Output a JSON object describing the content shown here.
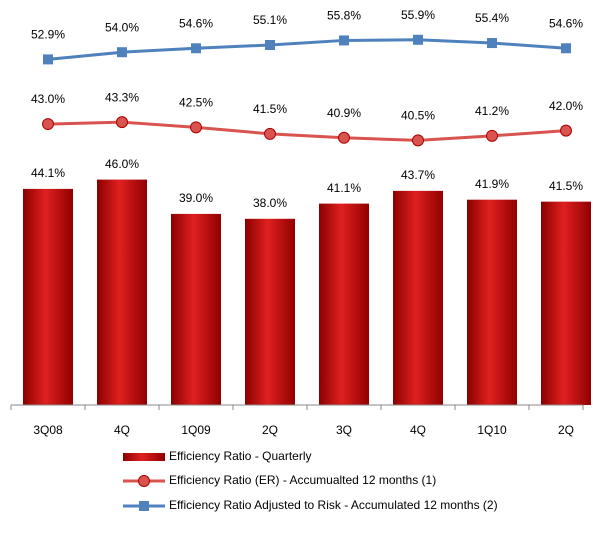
{
  "chart_data": {
    "type": "bar-line",
    "categories": [
      "3Q08",
      "4Q",
      "1Q09",
      "2Q",
      "3Q",
      "4Q",
      "1Q10",
      "2Q"
    ],
    "ylim": [
      0,
      80
    ],
    "y2lim": [
      0,
      60
    ],
    "series": [
      {
        "name": "Efficiency Ratio - Quarterly",
        "type": "bar",
        "color": "#c00000",
        "values": [
          44.1,
          46.0,
          39.0,
          38.0,
          41.1,
          43.7,
          41.9,
          41.5
        ],
        "value_labels": [
          "44.1%",
          "46.0%",
          "39.0%",
          "38.0%",
          "41.1%",
          "43.7%",
          "41.9%",
          "41.5%"
        ]
      },
      {
        "name": "Efficiency Ratio (ER) - Accumualted 12 months (1)",
        "type": "line",
        "axis": "y2",
        "color": "#d9534f",
        "values": [
          43.0,
          43.3,
          42.5,
          41.5,
          40.9,
          40.5,
          41.2,
          42.0
        ],
        "value_labels": [
          "43.0%",
          "43.3%",
          "42.5%",
          "41.5%",
          "40.9%",
          "40.5%",
          "41.2%",
          "42.0%"
        ]
      },
      {
        "name": "Efficiency Ratio Adjusted to Risk - Accumulated 12 months (2)",
        "type": "line",
        "axis": "y2",
        "color": "#4f81bd",
        "values": [
          52.9,
          54.0,
          54.6,
          55.1,
          55.8,
          55.9,
          55.4,
          54.6
        ],
        "value_labels": [
          "52.9%",
          "54.0%",
          "54.6%",
          "55.1%",
          "55.8%",
          "55.9%",
          "55.4%",
          "54.6%"
        ]
      }
    ],
    "legend": "bottom"
  }
}
